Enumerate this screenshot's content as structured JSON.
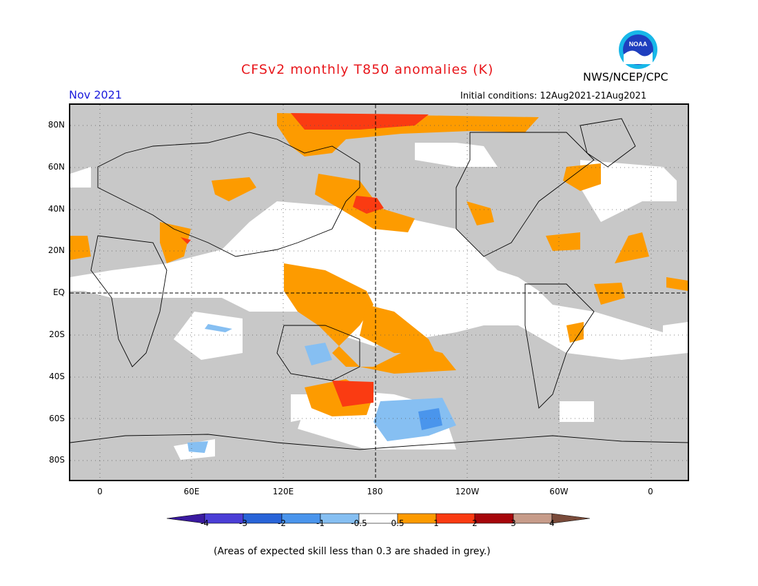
{
  "header": {
    "title": "CFSv2 monthly T850 anomalies (K)",
    "valid_month": "Nov 2021",
    "initial_conditions": "Initial conditions: 12Aug2021-21Aug2021",
    "agency": "NWS/NCEP/CPC",
    "logo_text": "NOAA"
  },
  "axes": {
    "y_ticks": [
      "80N",
      "60N",
      "40N",
      "20N",
      "EQ",
      "20S",
      "40S",
      "60S",
      "80S"
    ],
    "x_ticks": [
      "0",
      "60E",
      "120E",
      "180",
      "120W",
      "60W",
      "0"
    ]
  },
  "colorbar": {
    "labels": [
      "-4",
      "-3",
      "-2",
      "-1",
      "-0.5",
      "0.5",
      "1",
      "2",
      "3",
      "4"
    ],
    "colors": [
      "#3a1aa0",
      "#4b3ed6",
      "#2864d8",
      "#4a95ec",
      "#86bff2",
      "#ffffff",
      "#fd9b00",
      "#fa3b12",
      "#a6060b",
      "#c79c8a",
      "#7a4b3a"
    ]
  },
  "map_colors": {
    "low_skill": "#c8c8c8",
    "near_zero": "#ffffff",
    "warm_1": "#fd9b00",
    "warm_2": "#fa3b12",
    "cool_1": "#86bff2",
    "cool_2": "#4a95ec"
  },
  "footnote": "(Areas of expected skill less than 0.3 are shaded in grey.)"
}
